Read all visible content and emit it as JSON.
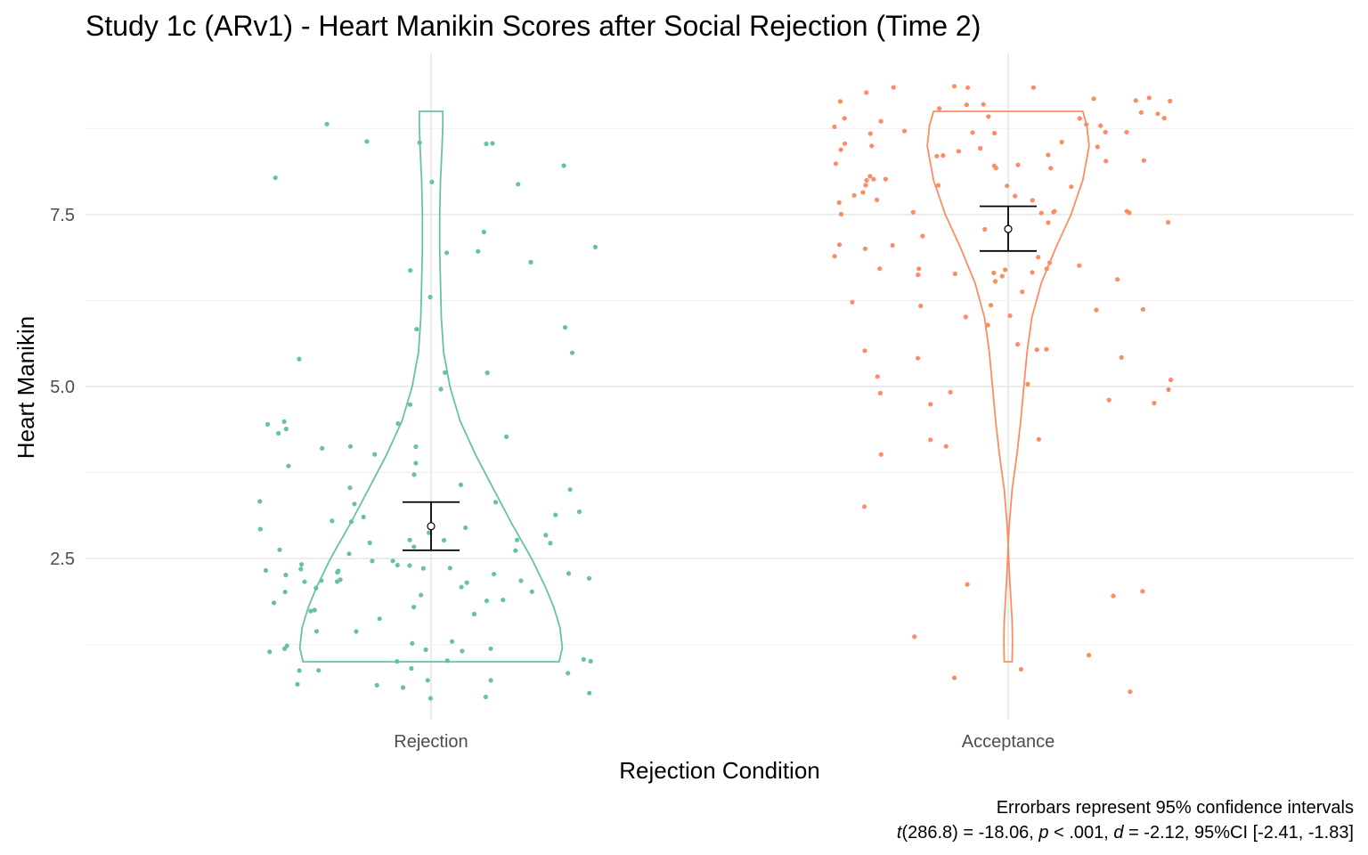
{
  "chart_data": {
    "type": "violin",
    "title": "Study 1c (ARv1) - Heart Manikin Scores after Social Rejection (Time 2)",
    "xlabel": "Rejection Condition",
    "ylabel": "Heart Manikin",
    "categories": [
      "Rejection",
      "Acceptance"
    ],
    "ylim": [
      0.2,
      9.6
    ],
    "yticks": [
      2.5,
      5.0,
      7.5
    ],
    "ytick_labels": [
      "2.5",
      "5.0",
      "7.5"
    ],
    "grid": true,
    "legend": "none",
    "colors": {
      "Rejection": "#66c2a5",
      "Acceptance": "#fc8d62"
    },
    "series": [
      {
        "category": "Rejection",
        "mean": 2.97,
        "ci_low": 2.62,
        "ci_high": 3.32,
        "violin": [
          [
            1.0,
            1.63
          ],
          [
            1.2,
            1.67
          ],
          [
            1.5,
            1.64
          ],
          [
            1.8,
            1.56
          ],
          [
            2.1,
            1.45
          ],
          [
            2.5,
            1.28
          ],
          [
            3.0,
            1.03
          ],
          [
            3.5,
            0.8
          ],
          [
            4.0,
            0.57
          ],
          [
            4.5,
            0.37
          ],
          [
            5.0,
            0.24
          ],
          [
            5.5,
            0.16
          ],
          [
            6.0,
            0.13
          ],
          [
            6.5,
            0.12
          ],
          [
            7.0,
            0.11
          ],
          [
            7.5,
            0.11
          ],
          [
            8.0,
            0.12
          ],
          [
            8.5,
            0.14
          ],
          [
            8.8,
            0.15
          ],
          [
            9.0,
            0.15
          ]
        ],
        "points": [
          0.7,
          0.8,
          0.9,
          1.0,
          1.2,
          1.3,
          0.7,
          0.6,
          0.9,
          1.3,
          1.1,
          0.8,
          0.9,
          0.7,
          0.6,
          1.3,
          1.2,
          1.4,
          1.1,
          1.6,
          1.7,
          1.8,
          2.0,
          2.1,
          2.2,
          2.1,
          2.3,
          2.0,
          1.9,
          2.2,
          2.3,
          2.4,
          2.6,
          2.7,
          2.7,
          2.8,
          2.9,
          2.9,
          3.0,
          2.7,
          2.6,
          2.8,
          3.1,
          3.2,
          3.3,
          3.4,
          3.6,
          3.6,
          3.7,
          2.1,
          2.2,
          2.4,
          2.5,
          1.8,
          1.7,
          2.0,
          2.3,
          2.5,
          2.6,
          2.9,
          3.1,
          3.3,
          2.7,
          2.4,
          2.2,
          2.0,
          1.9,
          2.6,
          2.4,
          2.8,
          3.6,
          3.8,
          4.2,
          4.2,
          4.3,
          4.6,
          4.2,
          4.4,
          4.8,
          5.0,
          5.0,
          5.2,
          5.2,
          5.4,
          5.6,
          5.9,
          6.2,
          6.6,
          6.7,
          6.8,
          6.9,
          7.0,
          7.3,
          7.8,
          8.0,
          8.1,
          8.1,
          8.3,
          8.7,
          8.7,
          8.8,
          8.8,
          1.0,
          1.2,
          2.1,
          2.2,
          2.9,
          3.0,
          3.0,
          0.7,
          0.8,
          1.4,
          1.3,
          1.0,
          2.7,
          4.2,
          4.1,
          3.7,
          4.6,
          2.7,
          2.3
        ]
      },
      {
        "category": "Acceptance",
        "mean": 7.29,
        "ci_low": 6.97,
        "ci_high": 7.62,
        "violin": [
          [
            1.0,
            0.05
          ],
          [
            1.3,
            0.055
          ],
          [
            1.6,
            0.05
          ],
          [
            2.0,
            0.03
          ],
          [
            2.3,
            0.015
          ],
          [
            2.7,
            0.0
          ],
          [
            3.0,
            0.015
          ],
          [
            3.5,
            0.05
          ],
          [
            4.0,
            0.11
          ],
          [
            4.5,
            0.16
          ],
          [
            5.0,
            0.2
          ],
          [
            5.5,
            0.24
          ],
          [
            6.0,
            0.3
          ],
          [
            6.5,
            0.42
          ],
          [
            7.0,
            0.6
          ],
          [
            7.5,
            0.8
          ],
          [
            8.0,
            0.95
          ],
          [
            8.5,
            1.03
          ],
          [
            8.8,
            1.0
          ],
          [
            9.0,
            0.95
          ]
        ],
        "points": [
          0.8,
          1.0,
          0.9,
          1.1,
          1.3,
          1.8,
          1.9,
          2.0,
          3.4,
          3.9,
          4.0,
          4.3,
          4.3,
          4.7,
          4.7,
          4.7,
          4.8,
          4.9,
          5.0,
          5.0,
          5.2,
          5.3,
          5.6,
          5.6,
          5.7,
          5.8,
          5.9,
          6.0,
          6.1,
          6.2,
          6.3,
          6.3,
          6.4,
          6.5,
          6.6,
          6.7,
          6.7,
          6.7,
          6.8,
          6.8,
          6.9,
          6.9,
          6.9,
          7.0,
          7.1,
          7.2,
          7.2,
          7.3,
          7.3,
          7.4,
          7.5,
          7.6,
          7.6,
          7.6,
          7.7,
          7.7,
          7.8,
          7.8,
          7.8,
          7.9,
          7.9,
          8.0,
          8.0,
          8.0,
          8.1,
          8.1,
          8.1,
          8.2,
          8.2,
          8.2,
          8.3,
          8.3,
          8.4,
          8.4,
          8.5,
          8.5,
          8.6,
          8.6,
          8.6,
          8.7,
          8.7,
          8.8,
          8.8,
          8.9,
          8.9,
          8.9,
          9.0,
          9.0,
          9.0,
          9.0,
          9.1,
          9.1,
          9.1,
          9.2,
          9.2,
          9.2,
          9.3,
          9.3,
          9.3,
          9.3,
          7.9,
          8.0,
          8.3,
          6.4,
          5.3,
          7.6,
          8.9,
          9.1,
          9.0,
          8.8,
          8.6,
          8.1,
          7.3,
          7.5,
          6.9,
          7.2,
          8.0,
          8.5,
          8.8,
          9.0,
          8.9,
          7.0,
          6.8,
          5.9,
          5.4,
          4.9
        ]
      }
    ]
  },
  "caption": {
    "line1": "Errorbars represent 95% confidence intervals",
    "line2_t": "t",
    "line2_a": "(286.8) = -18.06, ",
    "line2_p": "p",
    "line2_b": " < .001, ",
    "line2_d": "d",
    "line2_c": " = -2.12, 95%CI [-2.41, -1.83]"
  }
}
